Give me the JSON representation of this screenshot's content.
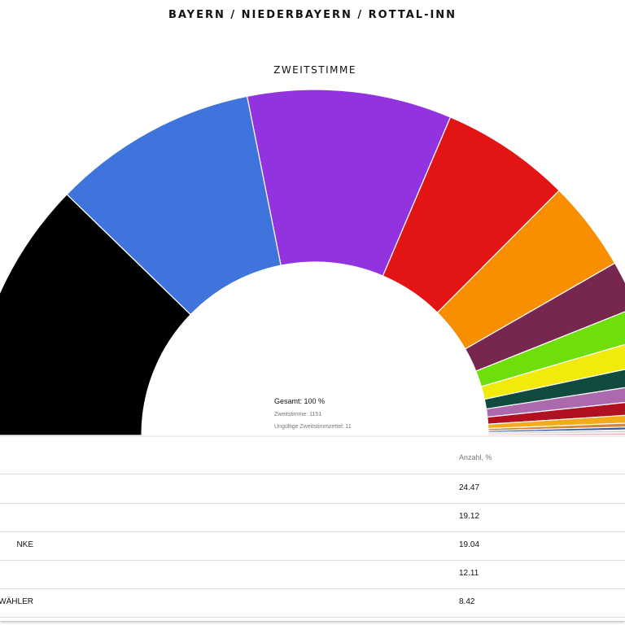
{
  "header": {
    "title": "BAYERN / NIEDERBAYERN / ROTTAL-INN"
  },
  "chart_data": {
    "type": "pie",
    "variant": "semicircle",
    "title": "ZWEITSTIMME",
    "center": {
      "total": "Gesamt: 100 %",
      "votes": "Zweitstimme: 1151",
      "invalid": "Ungültige Zweitstimmzettel: 11"
    },
    "slices": [
      {
        "value": 24.47,
        "color": "#000000"
      },
      {
        "value": 19.12,
        "color": "#3f74dd"
      },
      {
        "value": 19.04,
        "color": "#9333e0"
      },
      {
        "value": 12.11,
        "color": "#e31414"
      },
      {
        "value": 8.42,
        "color": "#f78f00"
      },
      {
        "value": 4.5,
        "color": "#77264f"
      },
      {
        "value": 3.0,
        "color": "#6fdf0c"
      },
      {
        "value": 2.4,
        "color": "#f2ea0a"
      },
      {
        "value": 1.8,
        "color": "#114b40"
      },
      {
        "value": 1.5,
        "color": "#ab6aae"
      },
      {
        "value": 1.3,
        "color": "#b11020"
      },
      {
        "value": 0.8,
        "color": "#f2ac1b"
      },
      {
        "value": 0.4,
        "color": "#d2873a"
      },
      {
        "value": 0.3,
        "color": "#3a5aa8"
      },
      {
        "value": 0.3,
        "color": "#d9d9d9"
      },
      {
        "value": 0.25,
        "color": "#f3b7c2"
      }
    ]
  },
  "table": {
    "value_header": "Anzahl, %",
    "rows": [
      {
        "party": "",
        "value": "24.47"
      },
      {
        "party": "",
        "value": "19.12"
      },
      {
        "party": "NKE",
        "value": "19.04"
      },
      {
        "party": "",
        "value": "12.11"
      },
      {
        "party": "WÄHLER",
        "value": "8.42"
      }
    ]
  }
}
